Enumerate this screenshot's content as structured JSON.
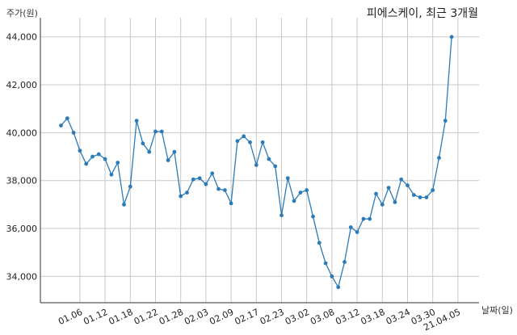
{
  "chart_data": {
    "type": "line",
    "title": "피에스케이, 최근 3개월",
    "ylabel": "주가(원)",
    "xlabel": "날짜(일)",
    "ylim": [
      32900,
      44800
    ],
    "yticks": [
      34000,
      36000,
      38000,
      40000,
      42000,
      44000
    ],
    "ytick_labels": [
      "34,000",
      "36,000",
      "38,000",
      "40,000",
      "42,000",
      "44,000"
    ],
    "grid": true,
    "xticks": [
      {
        "label": "01.06",
        "index": 3
      },
      {
        "label": "01.12",
        "index": 7
      },
      {
        "label": "01.18",
        "index": 11
      },
      {
        "label": "01.22",
        "index": 15
      },
      {
        "label": "01.28",
        "index": 19
      },
      {
        "label": "02.03",
        "index": 23
      },
      {
        "label": "02.09",
        "index": 27
      },
      {
        "label": "02.17",
        "index": 31
      },
      {
        "label": "02.23",
        "index": 35
      },
      {
        "label": "03.02",
        "index": 39
      },
      {
        "label": "03.08",
        "index": 43
      },
      {
        "label": "03.12",
        "index": 47
      },
      {
        "label": "03.18",
        "index": 51
      },
      {
        "label": "03.24",
        "index": 55
      },
      {
        "label": "03.30",
        "index": 59
      },
      {
        "label": "21.04.05",
        "index": 63
      }
    ],
    "values": [
      40300,
      40600,
      40000,
      39250,
      38700,
      39000,
      39100,
      38900,
      38250,
      38750,
      37000,
      37750,
      40500,
      39550,
      39200,
      40050,
      40050,
      38850,
      39200,
      37350,
      37500,
      38050,
      38100,
      37850,
      38300,
      37650,
      37600,
      37050,
      39650,
      39850,
      39600,
      38650,
      39600,
      38900,
      38600,
      36550,
      38100,
      37150,
      37500,
      37600,
      36500,
      35400,
      34550,
      34000,
      33550,
      34600,
      36050,
      35850,
      36400,
      36400,
      37450,
      37000,
      37700,
      37100,
      38050,
      37800,
      37400,
      37300,
      37300,
      37600,
      38950,
      40500,
      44000
    ]
  }
}
